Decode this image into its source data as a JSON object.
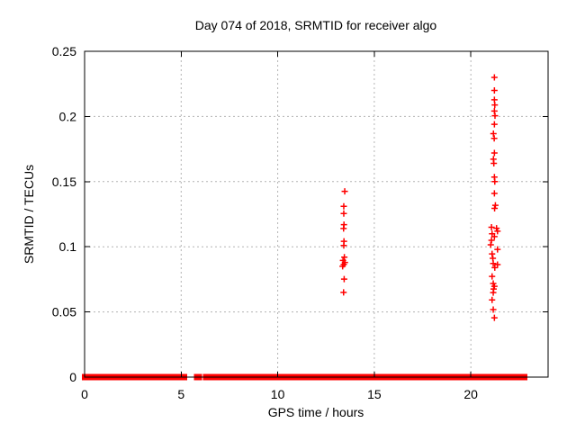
{
  "figure": {
    "background": "#ffffff",
    "axis_color": "#000000",
    "grid_color": "#b3b3b3",
    "text_color": "#000000"
  },
  "chart_data": {
    "type": "scatter",
    "title": "Day 074 of 2018, SRMTID for receiver algo",
    "xlabel": "GPS time / hours",
    "ylabel": "SRMTID / TECUs",
    "xlim": [
      0,
      24
    ],
    "ylim": [
      0,
      0.25
    ],
    "xticks": [
      0,
      5,
      10,
      15,
      20
    ],
    "xtick_labels": [
      "0",
      "5",
      "10",
      "15",
      "20"
    ],
    "yticks": [
      0,
      0.05,
      0.1,
      0.15,
      0.2,
      0.25
    ],
    "ytick_labels": [
      "0",
      "0.05",
      "0.1",
      "0.15",
      "0.2",
      "0.25"
    ],
    "grid": "dotted",
    "legend": "none",
    "marker": "plus",
    "marker_color": "#ff0000",
    "series": [
      {
        "name": "zero_baseline_runs",
        "y": 0,
        "x_runs": [
          [
            0.0,
            0.72
          ],
          [
            0.84,
            1.0
          ],
          [
            1.06,
            1.22
          ],
          [
            1.3,
            2.08
          ],
          [
            2.16,
            3.5
          ],
          [
            3.6,
            3.88
          ],
          [
            3.98,
            4.52
          ],
          [
            4.6,
            5.18
          ],
          [
            5.8,
            5.94
          ],
          [
            6.26,
            7.3
          ],
          [
            7.36,
            7.92
          ],
          [
            8.04,
            8.18
          ],
          [
            8.28,
            9.04
          ],
          [
            9.18,
            9.62
          ],
          [
            9.7,
            10.2
          ],
          [
            10.26,
            11.95
          ],
          [
            12.02,
            12.4
          ],
          [
            12.52,
            12.62
          ],
          [
            12.7,
            12.86
          ],
          [
            12.94,
            13.3
          ],
          [
            13.42,
            14.1
          ],
          [
            14.18,
            15.2
          ],
          [
            15.26,
            16.44
          ],
          [
            16.54,
            17.02
          ],
          [
            17.1,
            18.2
          ],
          [
            18.26,
            19.06
          ],
          [
            19.14,
            20.2
          ],
          [
            20.28,
            21.3
          ],
          [
            21.44,
            21.95
          ],
          [
            22.04,
            22.18
          ],
          [
            22.28,
            22.79
          ]
        ]
      },
      {
        "name": "mtid_event_cluster_13h",
        "points": [
          [
            13.47,
            0.1425
          ],
          [
            13.42,
            0.131
          ],
          [
            13.42,
            0.1255
          ],
          [
            13.43,
            0.117
          ],
          [
            13.41,
            0.114
          ],
          [
            13.43,
            0.1042
          ],
          [
            13.42,
            0.101
          ],
          [
            13.45,
            0.092
          ],
          [
            13.38,
            0.0895
          ],
          [
            13.48,
            0.088
          ],
          [
            13.42,
            0.0865
          ],
          [
            13.36,
            0.085
          ],
          [
            13.44,
            0.0752
          ],
          [
            13.41,
            0.065
          ]
        ]
      },
      {
        "name": "mtid_event_cluster_21h",
        "points": [
          [
            21.22,
            0.23
          ],
          [
            21.22,
            0.22
          ],
          [
            21.22,
            0.2128
          ],
          [
            21.24,
            0.2088
          ],
          [
            21.22,
            0.2042
          ],
          [
            21.25,
            0.2005
          ],
          [
            21.22,
            0.194
          ],
          [
            21.17,
            0.1868
          ],
          [
            21.21,
            0.1832
          ],
          [
            21.22,
            0.172
          ],
          [
            21.17,
            0.1672
          ],
          [
            21.19,
            0.164
          ],
          [
            21.22,
            0.1535
          ],
          [
            21.24,
            0.15
          ],
          [
            21.22,
            0.141
          ],
          [
            21.27,
            0.1318
          ],
          [
            21.23,
            0.1295
          ],
          [
            21.07,
            0.115
          ],
          [
            21.33,
            0.1142
          ],
          [
            21.38,
            0.112
          ],
          [
            21.1,
            0.11
          ],
          [
            21.22,
            0.1078
          ],
          [
            21.07,
            0.105
          ],
          [
            21.03,
            0.1015
          ],
          [
            21.38,
            0.098
          ],
          [
            21.1,
            0.0945
          ],
          [
            21.14,
            0.0912
          ],
          [
            21.16,
            0.0872
          ],
          [
            21.38,
            0.0863
          ],
          [
            21.24,
            0.084
          ],
          [
            21.1,
            0.0773
          ],
          [
            21.16,
            0.0718
          ],
          [
            21.22,
            0.0697
          ],
          [
            21.18,
            0.0676
          ],
          [
            21.16,
            0.0648
          ],
          [
            21.1,
            0.0592
          ],
          [
            21.16,
            0.0518
          ],
          [
            21.22,
            0.0455
          ]
        ]
      }
    ]
  }
}
